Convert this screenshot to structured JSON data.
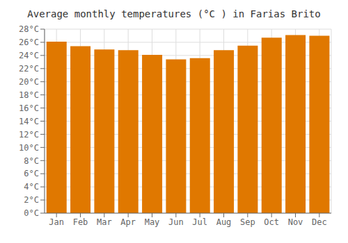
{
  "chart_data": {
    "type": "bar",
    "title": "Average monthly temperatures (°C ) in Farias Brito",
    "categories": [
      "Jan",
      "Feb",
      "Mar",
      "Apr",
      "May",
      "Jun",
      "Jul",
      "Aug",
      "Sep",
      "Oct",
      "Nov",
      "Dec"
    ],
    "values": [
      26.1,
      25.4,
      24.9,
      24.8,
      24.1,
      23.4,
      23.6,
      24.8,
      25.5,
      26.7,
      27.1,
      27.0
    ],
    "color": "#E07800",
    "ylim": [
      0,
      28
    ],
    "yticks": [
      {
        "value": 0,
        "label": "0°C"
      },
      {
        "value": 2,
        "label": "2°C"
      },
      {
        "value": 4,
        "label": "4°C"
      },
      {
        "value": 6,
        "label": "6°C"
      },
      {
        "value": 8,
        "label": "8°C"
      },
      {
        "value": 10,
        "label": "10°C"
      },
      {
        "value": 12,
        "label": "12°C"
      },
      {
        "value": 14,
        "label": "14°C"
      },
      {
        "value": 16,
        "label": "16°C"
      },
      {
        "value": 18,
        "label": "18°C"
      },
      {
        "value": 20,
        "label": "20°C"
      },
      {
        "value": 22,
        "label": "22°C"
      },
      {
        "value": 24,
        "label": "24°C"
      },
      {
        "value": 26,
        "label": "26°C"
      },
      {
        "value": 28,
        "label": "28°C"
      }
    ],
    "grid": true
  }
}
